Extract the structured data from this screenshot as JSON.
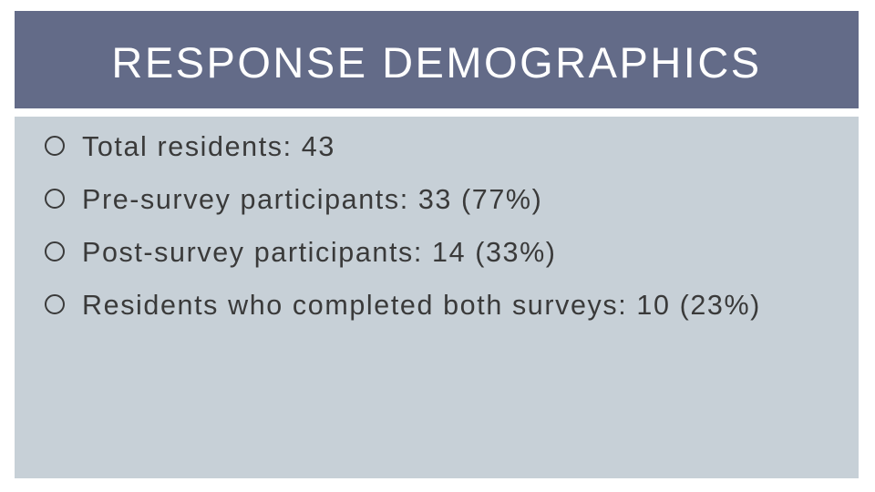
{
  "slide": {
    "title": "RESPONSE DEMOGRAPHICS",
    "bullets": [
      {
        "text": "Total residents: 43",
        "icon": "circle-bullet-icon"
      },
      {
        "text": "Pre-survey participants: 33 (77%)",
        "icon": "circle-bullet-icon"
      },
      {
        "text": "Post-survey participants: 14 (33%)",
        "icon": "circle-bullet-icon"
      },
      {
        "text": "Residents who completed both surveys: 10 (23%)",
        "icon": "circle-bullet-icon"
      }
    ]
  },
  "colors": {
    "title_bar": "#636b88",
    "content_background": "#c7d0d7",
    "text": "#3a3a3a",
    "bullet_outline": "#3a3a3a"
  }
}
